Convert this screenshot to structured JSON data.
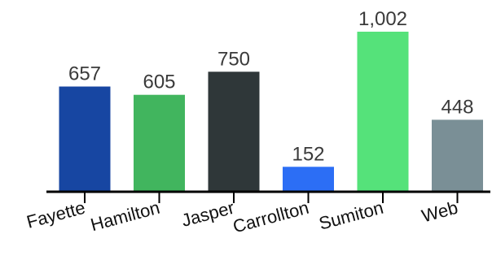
{
  "chart_data": {
    "type": "bar",
    "categories": [
      "Fayette",
      "Hamilton",
      "Jasper",
      "Carrollton",
      "Sumiton",
      "Web"
    ],
    "values": [
      657,
      605,
      750,
      152,
      1002,
      448
    ],
    "value_labels": [
      "657",
      "605",
      "750",
      "152",
      "1,002",
      "448"
    ],
    "colors": [
      "#1746A2",
      "#41B55E",
      "#2F3739",
      "#2C6EF5",
      "#55E27A",
      "#7A8F96"
    ],
    "ylim": [
      0,
      1002
    ],
    "title": "",
    "xlabel": "",
    "ylabel": "",
    "grid": false,
    "legend": "none"
  }
}
